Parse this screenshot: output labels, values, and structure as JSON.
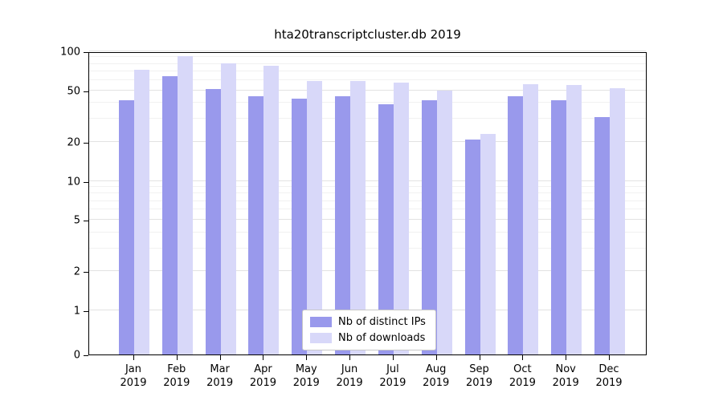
{
  "chart_data": {
    "type": "bar",
    "title": "hta20transcriptcluster.db 2019",
    "year": "2019",
    "categories": [
      "Jan",
      "Feb",
      "Mar",
      "Apr",
      "May",
      "Jun",
      "Jul",
      "Aug",
      "Sep",
      "Oct",
      "Nov",
      "Dec"
    ],
    "series": [
      {
        "name": "Nb of distinct IPs",
        "color": "#9999ec",
        "values": [
          42,
          64,
          51,
          45,
          43,
          45,
          39,
          42,
          21,
          45,
          42,
          31
        ]
      },
      {
        "name": "Nb of downloads",
        "color": "#d8d8f9",
        "values": [
          72,
          92,
          81,
          77,
          59,
          59,
          57,
          50,
          23,
          56,
          55,
          52
        ]
      }
    ],
    "yticks": [
      0,
      1,
      2,
      5,
      10,
      20,
      50,
      100
    ],
    "minor_yticks": [
      3,
      4,
      6,
      7,
      8,
      9,
      30,
      40,
      60,
      70,
      80,
      90
    ],
    "scale": "symlog",
    "ylim": [
      0,
      100
    ],
    "grid": true,
    "legend_position": "bottom-center"
  }
}
